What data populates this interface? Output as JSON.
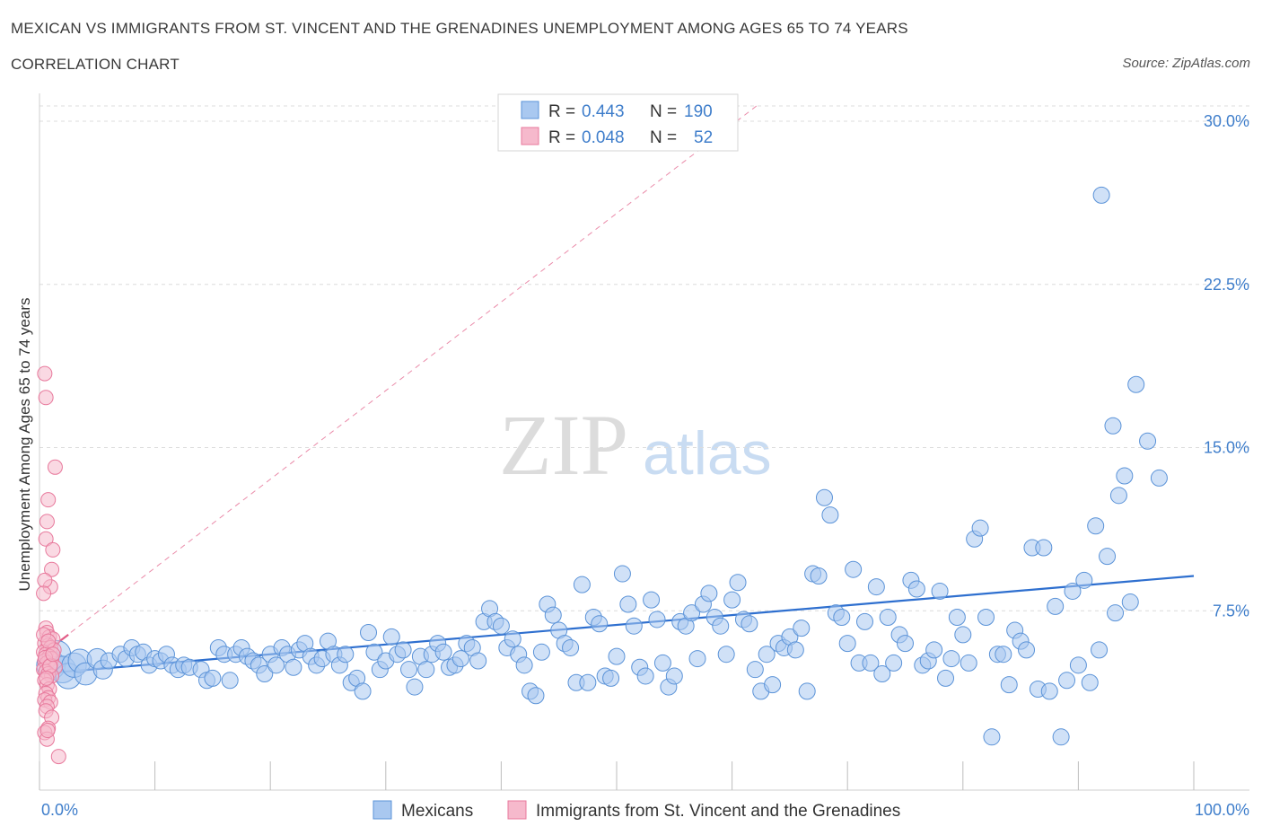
{
  "header": {
    "title": "MEXICAN VS IMMIGRANTS FROM ST. VINCENT AND THE GRENADINES UNEMPLOYMENT AMONG AGES 65 TO 74 YEARS",
    "subtitle": "CORRELATION CHART",
    "source": "Source: ZipAtlas.com"
  },
  "watermark": {
    "zip": "ZIP",
    "atlas": "atlas"
  },
  "legend_box": {
    "rows": [
      {
        "r_label": "R =",
        "r_value": "0.443",
        "n_label": "N =",
        "n_value": "190"
      },
      {
        "r_label": "R =",
        "r_value": "0.048",
        "n_label": "N =",
        "n_value": "52"
      }
    ]
  },
  "bottom_legend": {
    "series1": "Mexicans",
    "series2": "Immigrants from St. Vincent and the Grenadines"
  },
  "colors": {
    "blue_fill": "#a9c8f0",
    "blue_stroke": "#5b93d8",
    "blue_line": "#2e6fcf",
    "pink_fill": "#f6b9cc",
    "pink_stroke": "#e8799c",
    "pink_line": "#e25b86",
    "axis_text": "#3f7ecb",
    "grid": "#dcdcdc"
  },
  "chart_data": {
    "type": "scatter",
    "title": "MEXICAN VS IMMIGRANTS FROM ST. VINCENT AND THE GRENADINES UNEMPLOYMENT AMONG AGES 65 TO 74 YEARS",
    "xlabel": "",
    "ylabel": "Unemployment Among Ages 65 to 74 years",
    "xlim": [
      0,
      100
    ],
    "ylim": [
      0,
      30
    ],
    "x_tick_labels": [
      "0.0%",
      "100.0%"
    ],
    "y_ticks": [
      7.5,
      15.0,
      22.5,
      30.0
    ],
    "y_tick_labels": [
      "7.5%",
      "15.0%",
      "22.5%",
      "30.0%"
    ],
    "grid": "horizontal dashed",
    "legend": "top-center",
    "series": [
      {
        "name": "Mexicans",
        "R": 0.443,
        "N": 190,
        "trend": {
          "x0": 0,
          "y0": 4.6,
          "x1": 100,
          "y1": 9.1
        },
        "points": [
          [
            1.0,
            5.0
          ],
          [
            1.5,
            5.5
          ],
          [
            2.0,
            4.8
          ],
          [
            2.5,
            4.5
          ],
          [
            3.0,
            5.0
          ],
          [
            3.5,
            5.2
          ],
          [
            4.0,
            4.6
          ],
          [
            5.0,
            5.3
          ],
          [
            5.5,
            4.8
          ],
          [
            6.0,
            5.2
          ],
          [
            7.0,
            5.5
          ],
          [
            7.5,
            5.3
          ],
          [
            8.0,
            5.8
          ],
          [
            8.5,
            5.5
          ],
          [
            9.0,
            5.6
          ],
          [
            9.5,
            5.0
          ],
          [
            10.0,
            5.3
          ],
          [
            10.5,
            5.2
          ],
          [
            11.0,
            5.5
          ],
          [
            11.5,
            5.0
          ],
          [
            12.0,
            4.8
          ],
          [
            12.5,
            5.0
          ],
          [
            13.0,
            4.9
          ],
          [
            14.0,
            4.8
          ],
          [
            14.5,
            4.3
          ],
          [
            15.0,
            4.4
          ],
          [
            15.5,
            5.8
          ],
          [
            16.0,
            5.5
          ],
          [
            16.5,
            4.3
          ],
          [
            17.0,
            5.5
          ],
          [
            17.5,
            5.8
          ],
          [
            18.0,
            5.4
          ],
          [
            18.5,
            5.2
          ],
          [
            19.0,
            5.0
          ],
          [
            19.5,
            4.6
          ],
          [
            20.0,
            5.5
          ],
          [
            20.5,
            5.0
          ],
          [
            21.0,
            5.8
          ],
          [
            21.5,
            5.5
          ],
          [
            22.0,
            4.9
          ],
          [
            22.5,
            5.7
          ],
          [
            23.0,
            6.0
          ],
          [
            23.5,
            5.4
          ],
          [
            24.0,
            5.0
          ],
          [
            24.5,
            5.3
          ],
          [
            25.0,
            6.1
          ],
          [
            25.5,
            5.5
          ],
          [
            26.0,
            5.0
          ],
          [
            26.5,
            5.5
          ],
          [
            27.0,
            4.2
          ],
          [
            27.5,
            4.4
          ],
          [
            28.0,
            3.8
          ],
          [
            28.5,
            6.5
          ],
          [
            29.0,
            5.6
          ],
          [
            29.5,
            4.8
          ],
          [
            30.0,
            5.2
          ],
          [
            30.5,
            6.3
          ],
          [
            31.0,
            5.5
          ],
          [
            31.5,
            5.7
          ],
          [
            32.0,
            4.8
          ],
          [
            32.5,
            4.0
          ],
          [
            33.0,
            5.4
          ],
          [
            33.5,
            4.8
          ],
          [
            34.0,
            5.5
          ],
          [
            34.5,
            6.0
          ],
          [
            35.0,
            5.6
          ],
          [
            35.5,
            4.9
          ],
          [
            36.0,
            5.0
          ],
          [
            36.5,
            5.3
          ],
          [
            37.0,
            6.0
          ],
          [
            37.5,
            5.8
          ],
          [
            38.0,
            5.2
          ],
          [
            38.5,
            7.0
          ],
          [
            39.0,
            7.6
          ],
          [
            39.5,
            7.0
          ],
          [
            40.0,
            6.8
          ],
          [
            40.5,
            5.8
          ],
          [
            41.0,
            6.2
          ],
          [
            41.5,
            5.5
          ],
          [
            42.0,
            5.0
          ],
          [
            42.5,
            3.8
          ],
          [
            43.0,
            3.6
          ],
          [
            43.5,
            5.6
          ],
          [
            44.0,
            7.8
          ],
          [
            44.5,
            7.3
          ],
          [
            45.0,
            6.6
          ],
          [
            45.5,
            6.0
          ],
          [
            46.0,
            5.8
          ],
          [
            46.5,
            4.2
          ],
          [
            47.0,
            8.7
          ],
          [
            47.5,
            4.2
          ],
          [
            48.0,
            7.2
          ],
          [
            48.5,
            6.9
          ],
          [
            49.0,
            4.5
          ],
          [
            49.5,
            4.4
          ],
          [
            50.0,
            5.4
          ],
          [
            50.5,
            9.2
          ],
          [
            51.0,
            7.8
          ],
          [
            51.5,
            6.8
          ],
          [
            52.0,
            4.9
          ],
          [
            52.5,
            4.5
          ],
          [
            53.0,
            8.0
          ],
          [
            53.5,
            7.1
          ],
          [
            54.0,
            5.1
          ],
          [
            54.5,
            4.0
          ],
          [
            55.0,
            4.5
          ],
          [
            55.5,
            7.0
          ],
          [
            56.0,
            6.8
          ],
          [
            56.5,
            7.4
          ],
          [
            57.0,
            5.3
          ],
          [
            57.5,
            7.8
          ],
          [
            58.0,
            8.3
          ],
          [
            58.5,
            7.2
          ],
          [
            59.0,
            6.8
          ],
          [
            59.5,
            5.5
          ],
          [
            60.0,
            8.0
          ],
          [
            60.5,
            8.8
          ],
          [
            61.0,
            7.1
          ],
          [
            61.5,
            6.9
          ],
          [
            62.0,
            4.8
          ],
          [
            62.5,
            3.8
          ],
          [
            63.0,
            5.5
          ],
          [
            63.5,
            4.1
          ],
          [
            64.0,
            6.0
          ],
          [
            64.5,
            5.8
          ],
          [
            65.0,
            6.3
          ],
          [
            65.5,
            5.7
          ],
          [
            66.0,
            6.7
          ],
          [
            66.5,
            3.8
          ],
          [
            67.0,
            9.2
          ],
          [
            67.5,
            9.1
          ],
          [
            68.0,
            12.7
          ],
          [
            68.5,
            11.9
          ],
          [
            69.0,
            7.4
          ],
          [
            69.5,
            7.2
          ],
          [
            70.0,
            6.0
          ],
          [
            70.5,
            9.4
          ],
          [
            71.0,
            5.1
          ],
          [
            71.5,
            7.0
          ],
          [
            72.0,
            5.1
          ],
          [
            72.5,
            8.6
          ],
          [
            73.0,
            4.6
          ],
          [
            73.5,
            7.2
          ],
          [
            74.0,
            5.1
          ],
          [
            74.5,
            6.4
          ],
          [
            75.0,
            6.0
          ],
          [
            75.5,
            8.9
          ],
          [
            76.0,
            8.5
          ],
          [
            76.5,
            5.0
          ],
          [
            77.0,
            5.2
          ],
          [
            77.5,
            5.7
          ],
          [
            78.0,
            8.4
          ],
          [
            78.5,
            4.4
          ],
          [
            79.0,
            5.3
          ],
          [
            79.5,
            7.2
          ],
          [
            80.0,
            6.4
          ],
          [
            80.5,
            5.1
          ],
          [
            81.0,
            10.8
          ],
          [
            81.5,
            11.3
          ],
          [
            82.0,
            7.2
          ],
          [
            82.5,
            1.7
          ],
          [
            83.0,
            5.5
          ],
          [
            83.5,
            5.5
          ],
          [
            84.0,
            4.1
          ],
          [
            84.5,
            6.6
          ],
          [
            85.0,
            6.1
          ],
          [
            85.5,
            5.7
          ],
          [
            86.0,
            10.4
          ],
          [
            86.5,
            3.9
          ],
          [
            87.0,
            10.4
          ],
          [
            87.5,
            3.8
          ],
          [
            88.0,
            7.7
          ],
          [
            88.5,
            1.7
          ],
          [
            89.0,
            4.3
          ],
          [
            89.5,
            8.4
          ],
          [
            90.0,
            5.0
          ],
          [
            90.5,
            8.9
          ],
          [
            91.0,
            4.2
          ],
          [
            91.5,
            11.4
          ],
          [
            92.0,
            26.6
          ],
          [
            92.5,
            10.0
          ],
          [
            93.0,
            16.0
          ],
          [
            93.5,
            12.8
          ],
          [
            94.0,
            13.7
          ],
          [
            94.5,
            7.9
          ],
          [
            95.0,
            17.9
          ],
          [
            96.0,
            15.3
          ],
          [
            97.0,
            13.6
          ],
          [
            91.8,
            5.7
          ],
          [
            93.2,
            7.4
          ]
        ]
      },
      {
        "name": "Immigrants from St. Vincent and the Grenadines",
        "R": 0.048,
        "N": 52,
        "trend": {
          "x0": 0,
          "y0": 5.4,
          "x1": 100,
          "y1": 45.0
        },
        "points": [
          [
            0.3,
            18.4
          ],
          [
            0.4,
            17.3
          ],
          [
            1.2,
            14.1
          ],
          [
            0.6,
            12.6
          ],
          [
            0.5,
            11.6
          ],
          [
            0.4,
            10.8
          ],
          [
            1.0,
            10.3
          ],
          [
            0.9,
            9.4
          ],
          [
            0.8,
            8.6
          ],
          [
            0.3,
            8.9
          ],
          [
            0.2,
            8.3
          ],
          [
            0.4,
            6.7
          ],
          [
            0.5,
            6.5
          ],
          [
            0.7,
            6.3
          ],
          [
            1.0,
            6.2
          ],
          [
            0.3,
            6.0
          ],
          [
            0.6,
            5.9
          ],
          [
            0.8,
            5.8
          ],
          [
            1.1,
            5.7
          ],
          [
            0.2,
            5.6
          ],
          [
            0.4,
            5.5
          ],
          [
            0.7,
            5.4
          ],
          [
            0.9,
            5.3
          ],
          [
            0.3,
            5.2
          ],
          [
            0.5,
            5.1
          ],
          [
            0.8,
            5.0
          ],
          [
            1.2,
            4.9
          ],
          [
            0.2,
            4.8
          ],
          [
            0.4,
            4.7
          ],
          [
            0.6,
            4.6
          ],
          [
            0.9,
            4.5
          ],
          [
            0.3,
            4.3
          ],
          [
            0.5,
            4.1
          ],
          [
            0.7,
            3.9
          ],
          [
            0.4,
            3.7
          ],
          [
            0.6,
            3.5
          ],
          [
            0.3,
            3.4
          ],
          [
            0.8,
            3.3
          ],
          [
            0.5,
            3.1
          ],
          [
            0.4,
            2.9
          ],
          [
            0.9,
            2.6
          ],
          [
            0.6,
            2.1
          ],
          [
            0.3,
            1.9
          ],
          [
            0.5,
            1.6
          ],
          [
            1.5,
            0.8
          ],
          [
            0.2,
            6.4
          ],
          [
            0.6,
            6.1
          ],
          [
            0.35,
            5.35
          ],
          [
            0.75,
            4.95
          ],
          [
            0.45,
            4.4
          ],
          [
            0.55,
            2.0
          ],
          [
            1.0,
            5.5
          ]
        ]
      }
    ]
  }
}
